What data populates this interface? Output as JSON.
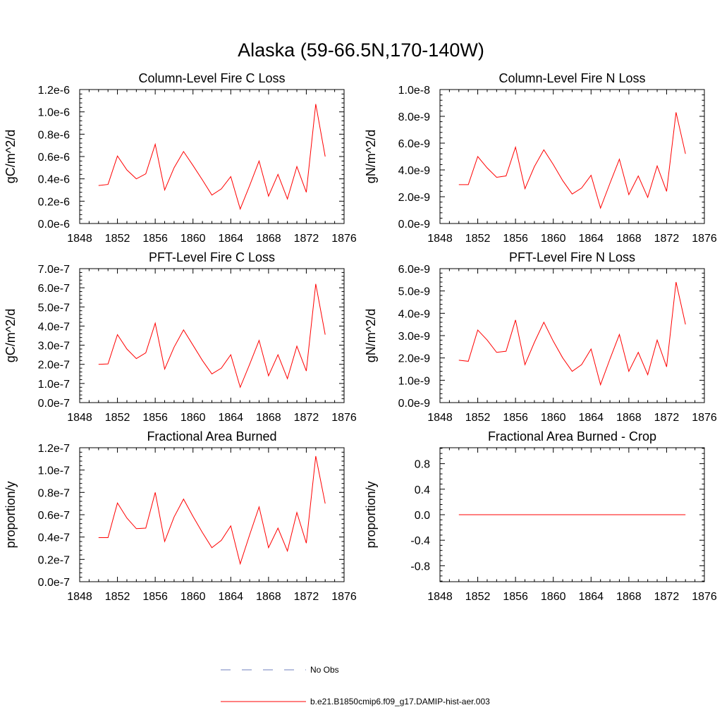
{
  "figure": {
    "title": "Alaska (59-66.5N,170-140W)",
    "series_color": "#ff0000",
    "obs_color": "#6f7fbf",
    "legend": {
      "obs_label": "No Obs",
      "model_label": "b.e21.B1850cmip6.f09_g17.DAMIP-hist-aer.003"
    }
  },
  "chart_data": [
    {
      "type": "line",
      "title": "Column-Level Fire C Loss",
      "xlabel": "",
      "ylabel": "gC/m^2/d",
      "xlim": [
        1848,
        1876
      ],
      "xticks": [
        1848,
        1852,
        1856,
        1860,
        1864,
        1868,
        1872,
        1876
      ],
      "xtick_labels": [
        "1848",
        "1852",
        "1856",
        "1860",
        "1864",
        "1868",
        "1872",
        "1876"
      ],
      "ylim": [
        0,
        1.2e-06
      ],
      "yticks": [
        0,
        2e-07,
        4e-07,
        6e-07,
        8e-07,
        1e-06,
        1.2e-06
      ],
      "ytick_labels": [
        "0.0e-6",
        "0.2e-6",
        "0.4e-6",
        "0.6e-6",
        "0.8e-6",
        "1.0e-6",
        "1.2e-6"
      ],
      "grid": false,
      "series": [
        {
          "x": [
            1850,
            1851,
            1852,
            1853,
            1854,
            1855,
            1856,
            1857,
            1858,
            1859,
            1860,
            1861,
            1862,
            1863,
            1864,
            1865,
            1866,
            1867,
            1868,
            1869,
            1870,
            1871,
            1872,
            1873,
            1874
          ],
          "values": [
            3.4e-07,
            3.5e-07,
            6.05e-07,
            4.8e-07,
            4e-07,
            4.45e-07,
            7.1e-07,
            3e-07,
            5e-07,
            6.45e-07,
            5.2e-07,
            3.9e-07,
            2.55e-07,
            3.1e-07,
            4.2e-07,
            1.3e-07,
            3.4e-07,
            5.6e-07,
            2.45e-07,
            4.4e-07,
            2.2e-07,
            5.1e-07,
            2.8e-07,
            1.07e-06,
            6e-07
          ]
        }
      ]
    },
    {
      "type": "line",
      "title": "Column-Level Fire N Loss",
      "xlabel": "",
      "ylabel": "gN/m^2/d",
      "xlim": [
        1848,
        1876
      ],
      "xticks": [
        1848,
        1852,
        1856,
        1860,
        1864,
        1868,
        1872,
        1876
      ],
      "xtick_labels": [
        "1848",
        "1852",
        "1856",
        "1860",
        "1864",
        "1868",
        "1872",
        "1876"
      ],
      "ylim": [
        0,
        1e-08
      ],
      "yticks": [
        0,
        2e-09,
        4e-09,
        6e-09,
        8e-09,
        1e-08
      ],
      "ytick_labels": [
        "0.0e-9",
        "2.0e-9",
        "4.0e-9",
        "6.0e-9",
        "8.0e-9",
        "1.0e-8"
      ],
      "grid": false,
      "series": [
        {
          "x": [
            1850,
            1851,
            1852,
            1853,
            1854,
            1855,
            1856,
            1857,
            1858,
            1859,
            1860,
            1861,
            1862,
            1863,
            1864,
            1865,
            1866,
            1867,
            1868,
            1869,
            1870,
            1871,
            1872,
            1873,
            1874
          ],
          "values": [
            2.9e-09,
            2.9e-09,
            5e-09,
            4.15e-09,
            3.45e-09,
            3.55e-09,
            5.7e-09,
            2.6e-09,
            4.25e-09,
            5.5e-09,
            4.4e-09,
            3.2e-09,
            2.2e-09,
            2.65e-09,
            3.6e-09,
            1.15e-09,
            3e-09,
            4.8e-09,
            2.15e-09,
            3.55e-09,
            1.95e-09,
            4.3e-09,
            2.4e-09,
            8.3e-09,
            5.2e-09
          ]
        }
      ]
    },
    {
      "type": "line",
      "title": "PFT-Level Fire C Loss",
      "xlabel": "",
      "ylabel": "gC/m^2/d",
      "xlim": [
        1848,
        1876
      ],
      "xticks": [
        1848,
        1852,
        1856,
        1860,
        1864,
        1868,
        1872,
        1876
      ],
      "xtick_labels": [
        "1848",
        "1852",
        "1856",
        "1860",
        "1864",
        "1868",
        "1872",
        "1876"
      ],
      "ylim": [
        0,
        7e-07
      ],
      "yticks": [
        0,
        1e-07,
        2e-07,
        3e-07,
        4e-07,
        5e-07,
        6e-07,
        7e-07
      ],
      "ytick_labels": [
        "0.0e-7",
        "1.0e-7",
        "2.0e-7",
        "3.0e-7",
        "4.0e-7",
        "5.0e-7",
        "6.0e-7",
        "7.0e-7"
      ],
      "grid": false,
      "series": [
        {
          "x": [
            1850,
            1851,
            1852,
            1853,
            1854,
            1855,
            1856,
            1857,
            1858,
            1859,
            1860,
            1861,
            1862,
            1863,
            1864,
            1865,
            1866,
            1867,
            1868,
            1869,
            1870,
            1871,
            1872,
            1873,
            1874
          ],
          "values": [
            2e-07,
            2.02e-07,
            3.55e-07,
            2.8e-07,
            2.3e-07,
            2.6e-07,
            4.15e-07,
            1.75e-07,
            2.9e-07,
            3.8e-07,
            3e-07,
            2.2e-07,
            1.5e-07,
            1.8e-07,
            2.5e-07,
            8e-08,
            2e-07,
            3.25e-07,
            1.4e-07,
            2.5e-07,
            1.25e-07,
            2.95e-07,
            1.65e-07,
            6.2e-07,
            3.55e-07
          ]
        }
      ]
    },
    {
      "type": "line",
      "title": "PFT-Level Fire N Loss",
      "xlabel": "",
      "ylabel": "gN/m^2/d",
      "xlim": [
        1848,
        1876
      ],
      "xticks": [
        1848,
        1852,
        1856,
        1860,
        1864,
        1868,
        1872,
        1876
      ],
      "xtick_labels": [
        "1848",
        "1852",
        "1856",
        "1860",
        "1864",
        "1868",
        "1872",
        "1876"
      ],
      "ylim": [
        0,
        6e-09
      ],
      "yticks": [
        0,
        1e-09,
        2e-09,
        3e-09,
        4e-09,
        5e-09,
        6e-09
      ],
      "ytick_labels": [
        "0.0e-9",
        "1.0e-9",
        "2.0e-9",
        "3.0e-9",
        "4.0e-9",
        "5.0e-9",
        "6.0e-9"
      ],
      "grid": false,
      "series": [
        {
          "x": [
            1850,
            1851,
            1852,
            1853,
            1854,
            1855,
            1856,
            1857,
            1858,
            1859,
            1860,
            1861,
            1862,
            1863,
            1864,
            1865,
            1866,
            1867,
            1868,
            1869,
            1870,
            1871,
            1872,
            1873,
            1874
          ],
          "values": [
            1.9e-09,
            1.85e-09,
            3.25e-09,
            2.8e-09,
            2.25e-09,
            2.3e-09,
            3.7e-09,
            1.7e-09,
            2.7e-09,
            3.6e-09,
            2.75e-09,
            2e-09,
            1.4e-09,
            1.7e-09,
            2.4e-09,
            8e-10,
            1.95e-09,
            3.05e-09,
            1.4e-09,
            2.25e-09,
            1.25e-09,
            2.8e-09,
            1.6e-09,
            5.4e-09,
            3.5e-09
          ]
        }
      ]
    },
    {
      "type": "line",
      "title": "Fractional Area Burned",
      "xlabel": "",
      "ylabel": "proportion/y",
      "xlim": [
        1848,
        1876
      ],
      "xticks": [
        1848,
        1852,
        1856,
        1860,
        1864,
        1868,
        1872,
        1876
      ],
      "xtick_labels": [
        "1848",
        "1852",
        "1856",
        "1860",
        "1864",
        "1868",
        "1872",
        "1876"
      ],
      "ylim": [
        0,
        1.2e-07
      ],
      "yticks": [
        0,
        2e-08,
        4e-08,
        6e-08,
        8e-08,
        1e-07,
        1.2e-07
      ],
      "ytick_labels": [
        "0.0e-7",
        "0.2e-7",
        "0.4e-7",
        "0.6e-7",
        "0.8e-7",
        "1.0e-7",
        "1.2e-7"
      ],
      "grid": false,
      "series": [
        {
          "x": [
            1850,
            1851,
            1852,
            1853,
            1854,
            1855,
            1856,
            1857,
            1858,
            1859,
            1860,
            1861,
            1862,
            1863,
            1864,
            1865,
            1866,
            1867,
            1868,
            1869,
            1870,
            1871,
            1872,
            1873,
            1874
          ],
          "values": [
            3.95e-08,
            3.95e-08,
            7.05e-08,
            5.7e-08,
            4.75e-08,
            4.8e-08,
            8e-08,
            3.6e-08,
            5.8e-08,
            7.4e-08,
            5.85e-08,
            4.4e-08,
            3.05e-08,
            3.7e-08,
            5e-08,
            1.6e-08,
            4.2e-08,
            6.7e-08,
            3.05e-08,
            4.8e-08,
            2.75e-08,
            6.2e-08,
            3.45e-08,
            1.125e-07,
            7e-08
          ]
        }
      ]
    },
    {
      "type": "line",
      "title": "Fractional Area Burned - Crop",
      "xlabel": "",
      "ylabel": "proportion/y",
      "xlim": [
        1848,
        1876
      ],
      "xticks": [
        1848,
        1852,
        1856,
        1860,
        1864,
        1868,
        1872,
        1876
      ],
      "xtick_labels": [
        "1848",
        "1852",
        "1856",
        "1860",
        "1864",
        "1868",
        "1872",
        "1876"
      ],
      "ylim": [
        -1.05,
        1.05
      ],
      "yticks": [
        -0.8,
        -0.4,
        0,
        0.4,
        0.8
      ],
      "ytick_labels": [
        "-0.8",
        "-0.4",
        "0.0",
        "0.4",
        "0.8"
      ],
      "grid": false,
      "series": [
        {
          "x": [
            1850,
            1874
          ],
          "values": [
            0,
            0
          ]
        }
      ]
    }
  ]
}
